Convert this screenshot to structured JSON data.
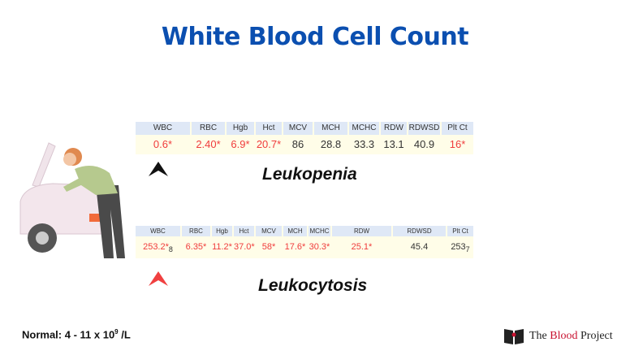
{
  "title": "White Blood Cell Count",
  "table1": {
    "headers": [
      "WBC",
      "RBC",
      "Hgb",
      "Hct",
      "MCV",
      "MCH",
      "MCHC",
      "RDW",
      "RDWSD",
      "Plt Ct"
    ],
    "values": [
      "0.6*",
      "2.40*",
      "6.9*",
      "20.7*",
      "86",
      "28.8",
      "33.3",
      "13.1",
      "40.9",
      "16*"
    ],
    "abnormal": [
      true,
      true,
      true,
      true,
      false,
      false,
      false,
      false,
      false,
      true
    ]
  },
  "label1": "Leukopenia",
  "table2": {
    "headers": [
      "WBC",
      "RBC",
      "Hgb",
      "Hct",
      "MCV",
      "MCH",
      "MCHC",
      "RDW",
      "RDWSD",
      "Plt Ct"
    ],
    "values": [
      "253.2*",
      "6.35*",
      "11.2*",
      "37.0*",
      "58*",
      "17.6*",
      "30.3*",
      "25.1*",
      "45.4",
      "253"
    ],
    "subscripts": {
      "wbc": "8",
      "plt": "7"
    },
    "abnormal": [
      true,
      true,
      true,
      true,
      true,
      true,
      true,
      true,
      false,
      false
    ]
  },
  "label2": "Leukocytosis",
  "colors": {
    "title": "#0b4fb0",
    "abnormal": "#f03c3c",
    "arrow_down": "#111111",
    "arrow_up": "#f04040"
  },
  "footer": {
    "normal_prefix": "Normal: 4 - 11 x 10",
    "normal_exp": "9",
    "normal_suffix": " /L"
  },
  "logo": {
    "the": "The ",
    "blood": "Blood",
    "project": " Project"
  }
}
